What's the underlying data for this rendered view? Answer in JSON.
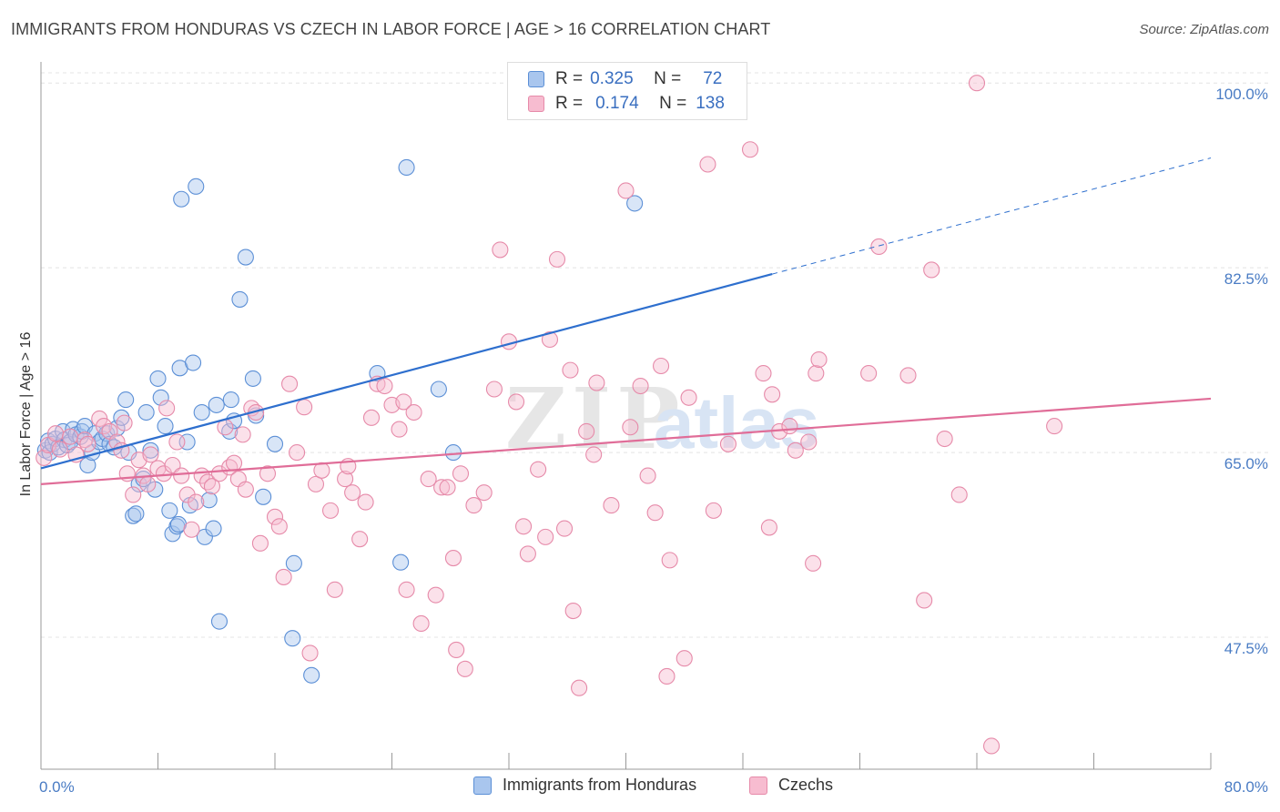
{
  "title": "IMMIGRANTS FROM HONDURAS VS CZECH IN LABOR FORCE | AGE > 16 CORRELATION CHART",
  "source": "Source: ZipAtlas.com",
  "legend_top": {
    "r_label": "R =",
    "n_label": "N =",
    "rows": [
      {
        "r": "0.325",
        "n": "72"
      },
      {
        "r": "0.174",
        "n": "138"
      }
    ]
  },
  "colors": {
    "blue_fill": "#a9c6ee",
    "blue_stroke": "#5b8fd6",
    "blue_line": "#2e6fce",
    "pink_fill": "#f7bcd0",
    "pink_stroke": "#e68aa9",
    "pink_line": "#e06d98",
    "tick_text": "#4a7cc4"
  },
  "chart_data": {
    "type": "scatter",
    "ylabel": "In Labor Force | Age > 16",
    "xlim": [
      0,
      80
    ],
    "ylim": [
      35,
      102
    ],
    "x_tick_labels": [
      "0.0%",
      "80.0%"
    ],
    "y_ticks": [
      {
        "value": 100.0,
        "label": "100.0%"
      },
      {
        "value": 82.5,
        "label": "82.5%"
      },
      {
        "value": 65.0,
        "label": "65.0%"
      },
      {
        "value": 47.5,
        "label": "47.5%"
      }
    ],
    "series": [
      {
        "name": "Immigrants from Honduras",
        "trend": {
          "x": [
            0,
            50
          ],
          "y": [
            63.5,
            81.9
          ]
        },
        "trend_dashed": {
          "x": [
            50,
            80
          ],
          "y": [
            81.9,
            92.9
          ]
        },
        "points": [
          [
            0.3,
            65.2
          ],
          [
            0.5,
            66.1
          ],
          [
            0.6,
            65.0
          ],
          [
            0.8,
            65.8
          ],
          [
            1.0,
            66.3
          ],
          [
            1.2,
            65.5
          ],
          [
            1.5,
            67.0
          ],
          [
            1.6,
            66.2
          ],
          [
            1.8,
            65.7
          ],
          [
            2.0,
            66.0
          ],
          [
            2.2,
            67.2
          ],
          [
            2.4,
            66.7
          ],
          [
            2.7,
            66.5
          ],
          [
            2.8,
            67.0
          ],
          [
            3.0,
            67.5
          ],
          [
            3.2,
            63.8
          ],
          [
            3.5,
            65.0
          ],
          [
            3.7,
            66.8
          ],
          [
            4.0,
            66.0
          ],
          [
            4.2,
            66.3
          ],
          [
            4.5,
            66.8
          ],
          [
            4.7,
            65.8
          ],
          [
            5.0,
            65.5
          ],
          [
            5.2,
            67.3
          ],
          [
            5.5,
            68.3
          ],
          [
            5.8,
            70.0
          ],
          [
            6.0,
            65.0
          ],
          [
            6.3,
            59.0
          ],
          [
            6.5,
            59.2
          ],
          [
            6.7,
            62.0
          ],
          [
            7.0,
            62.5
          ],
          [
            7.2,
            68.8
          ],
          [
            7.5,
            65.2
          ],
          [
            7.8,
            61.5
          ],
          [
            8.0,
            72.0
          ],
          [
            8.2,
            70.2
          ],
          [
            8.5,
            67.5
          ],
          [
            8.8,
            59.5
          ],
          [
            9.0,
            57.3
          ],
          [
            9.3,
            58.0
          ],
          [
            9.4,
            58.2
          ],
          [
            9.5,
            73.0
          ],
          [
            9.6,
            89.0
          ],
          [
            10.0,
            66.0
          ],
          [
            10.2,
            60.0
          ],
          [
            10.4,
            73.5
          ],
          [
            10.6,
            90.2
          ],
          [
            11.0,
            68.8
          ],
          [
            11.2,
            57.0
          ],
          [
            11.5,
            60.5
          ],
          [
            11.8,
            57.8
          ],
          [
            12.0,
            69.5
          ],
          [
            12.2,
            49.0
          ],
          [
            12.9,
            67.0
          ],
          [
            13.0,
            70.0
          ],
          [
            13.2,
            68.0
          ],
          [
            13.6,
            79.5
          ],
          [
            14.0,
            83.5
          ],
          [
            14.5,
            72.0
          ],
          [
            14.7,
            68.5
          ],
          [
            15.2,
            60.8
          ],
          [
            16.0,
            65.8
          ],
          [
            17.3,
            54.5
          ],
          [
            17.2,
            47.4
          ],
          [
            18.5,
            43.9
          ],
          [
            23.0,
            72.5
          ],
          [
            24.6,
            54.6
          ],
          [
            25.0,
            92.0
          ],
          [
            27.2,
            71.0
          ],
          [
            28.2,
            65.0
          ],
          [
            40.6,
            88.6
          ],
          [
            41.8,
            101.0
          ]
        ]
      },
      {
        "name": "Czechs",
        "trend": {
          "x": [
            0,
            80
          ],
          "y": [
            62.0,
            70.1
          ]
        },
        "points": [
          [
            0.2,
            64.5
          ],
          [
            0.5,
            65.7
          ],
          [
            1.0,
            66.8
          ],
          [
            1.3,
            65.3
          ],
          [
            2.0,
            66.5
          ],
          [
            2.4,
            64.8
          ],
          [
            3.0,
            66.2
          ],
          [
            3.2,
            65.8
          ],
          [
            4.0,
            68.2
          ],
          [
            4.3,
            67.5
          ],
          [
            4.7,
            67.0
          ],
          [
            5.2,
            66.0
          ],
          [
            5.5,
            65.2
          ],
          [
            5.7,
            67.8
          ],
          [
            5.9,
            63.0
          ],
          [
            6.3,
            61.0
          ],
          [
            6.7,
            64.3
          ],
          [
            7.0,
            62.8
          ],
          [
            7.3,
            62.0
          ],
          [
            7.5,
            64.8
          ],
          [
            8.0,
            63.5
          ],
          [
            8.4,
            63.0
          ],
          [
            8.6,
            69.2
          ],
          [
            9.0,
            63.8
          ],
          [
            9.3,
            66.0
          ],
          [
            9.6,
            62.8
          ],
          [
            10.0,
            61.0
          ],
          [
            10.3,
            57.7
          ],
          [
            10.6,
            60.3
          ],
          [
            11.0,
            62.8
          ],
          [
            11.4,
            62.2
          ],
          [
            11.7,
            61.8
          ],
          [
            12.2,
            63.0
          ],
          [
            12.6,
            67.4
          ],
          [
            12.9,
            63.6
          ],
          [
            13.2,
            64.0
          ],
          [
            13.5,
            62.5
          ],
          [
            13.8,
            66.7
          ],
          [
            14.0,
            61.5
          ],
          [
            14.4,
            69.2
          ],
          [
            14.7,
            68.8
          ],
          [
            15.0,
            56.4
          ],
          [
            15.5,
            63.0
          ],
          [
            16.0,
            58.9
          ],
          [
            16.3,
            58.0
          ],
          [
            16.6,
            53.2
          ],
          [
            17.0,
            71.5
          ],
          [
            17.5,
            65.0
          ],
          [
            18.0,
            69.3
          ],
          [
            18.4,
            46.0
          ],
          [
            18.8,
            62.0
          ],
          [
            19.2,
            63.3
          ],
          [
            19.8,
            59.5
          ],
          [
            20.1,
            52.0
          ],
          [
            20.8,
            62.5
          ],
          [
            21.0,
            63.7
          ],
          [
            21.3,
            61.2
          ],
          [
            21.8,
            56.8
          ],
          [
            22.2,
            60.3
          ],
          [
            22.6,
            68.3
          ],
          [
            23.0,
            71.5
          ],
          [
            23.5,
            71.3
          ],
          [
            24.0,
            69.5
          ],
          [
            24.5,
            67.2
          ],
          [
            24.8,
            69.8
          ],
          [
            25.0,
            52.0
          ],
          [
            25.5,
            68.8
          ],
          [
            26.0,
            48.8
          ],
          [
            26.5,
            62.5
          ],
          [
            27.0,
            51.5
          ],
          [
            27.4,
            61.7
          ],
          [
            27.8,
            61.7
          ],
          [
            28.2,
            55.0
          ],
          [
            28.4,
            46.3
          ],
          [
            28.7,
            63.0
          ],
          [
            29.0,
            44.5
          ],
          [
            29.6,
            60.0
          ],
          [
            30.3,
            61.2
          ],
          [
            31.0,
            71.0
          ],
          [
            31.4,
            84.2
          ],
          [
            32.0,
            75.5
          ],
          [
            32.5,
            69.8
          ],
          [
            33.0,
            58.0
          ],
          [
            33.3,
            55.4
          ],
          [
            34.0,
            63.4
          ],
          [
            34.5,
            57.0
          ],
          [
            34.8,
            75.7
          ],
          [
            35.3,
            83.3
          ],
          [
            35.8,
            57.8
          ],
          [
            36.2,
            72.8
          ],
          [
            36.4,
            50.0
          ],
          [
            36.8,
            42.7
          ],
          [
            37.3,
            67.0
          ],
          [
            37.8,
            64.8
          ],
          [
            38.0,
            71.6
          ],
          [
            39.0,
            60.0
          ],
          [
            40.0,
            89.8
          ],
          [
            40.3,
            67.4
          ],
          [
            41.0,
            71.3
          ],
          [
            41.5,
            62.8
          ],
          [
            42.0,
            59.3
          ],
          [
            42.4,
            73.2
          ],
          [
            42.8,
            43.8
          ],
          [
            43.0,
            54.8
          ],
          [
            44.0,
            45.5
          ],
          [
            44.3,
            70.2
          ],
          [
            45.6,
            92.3
          ],
          [
            46.0,
            59.5
          ],
          [
            47.0,
            65.8
          ],
          [
            48.5,
            93.7
          ],
          [
            49.4,
            72.5
          ],
          [
            49.8,
            57.9
          ],
          [
            50.0,
            70.5
          ],
          [
            50.5,
            67.0
          ],
          [
            51.2,
            67.5
          ],
          [
            51.6,
            65.2
          ],
          [
            52.5,
            66.0
          ],
          [
            52.8,
            54.5
          ],
          [
            53.0,
            72.5
          ],
          [
            53.2,
            73.8
          ],
          [
            56.6,
            72.5
          ],
          [
            57.3,
            84.5
          ],
          [
            59.3,
            72.3
          ],
          [
            60.4,
            51.0
          ],
          [
            60.9,
            82.3
          ],
          [
            61.8,
            66.3
          ],
          [
            62.8,
            61.0
          ],
          [
            64.0,
            100.0
          ],
          [
            65.0,
            37.2
          ],
          [
            69.3,
            67.5
          ]
        ]
      }
    ]
  },
  "bottom_legend": {
    "items": [
      "Immigrants from Honduras",
      "Czechs"
    ]
  }
}
